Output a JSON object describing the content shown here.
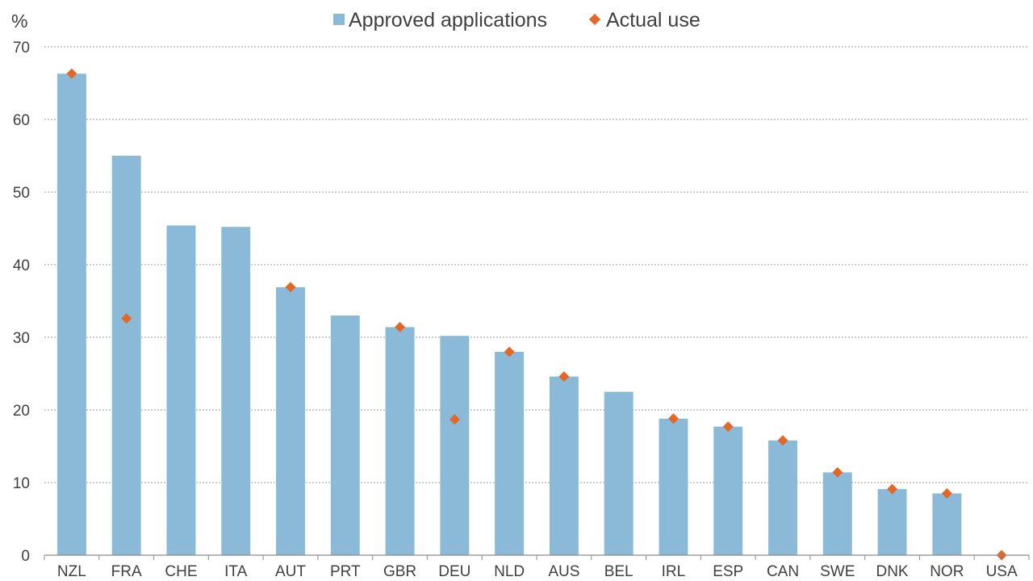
{
  "chart_data": {
    "type": "bar",
    "y_unit_label": "%",
    "categories": [
      "NZL",
      "FRA",
      "CHE",
      "ITA",
      "AUT",
      "PRT",
      "GBR",
      "DEU",
      "NLD",
      "AUS",
      "BEL",
      "IRL",
      "ESP",
      "CAN",
      "SWE",
      "DNK",
      "NOR",
      "USA"
    ],
    "series": [
      {
        "name": "Approved applications",
        "kind": "bar",
        "color": "#8bbad9",
        "values": [
          66.3,
          55.0,
          45.4,
          45.2,
          36.9,
          33.0,
          31.4,
          30.2,
          28.0,
          24.6,
          22.5,
          18.8,
          17.7,
          15.8,
          11.4,
          9.1,
          8.5,
          0
        ]
      },
      {
        "name": "Actual use",
        "kind": "marker",
        "color": "#e2682a",
        "values": [
          66.3,
          32.6,
          null,
          null,
          36.9,
          null,
          31.4,
          18.7,
          28.0,
          24.6,
          null,
          18.8,
          17.7,
          15.8,
          11.4,
          9.1,
          8.5,
          0
        ]
      }
    ],
    "ylim": [
      0,
      70
    ],
    "yticks": [
      0,
      10,
      20,
      30,
      40,
      50,
      60,
      70
    ],
    "grid": true,
    "legend_position": "top-center"
  },
  "legend": {
    "bar_label": "Approved applications",
    "marker_label": "Actual use"
  }
}
